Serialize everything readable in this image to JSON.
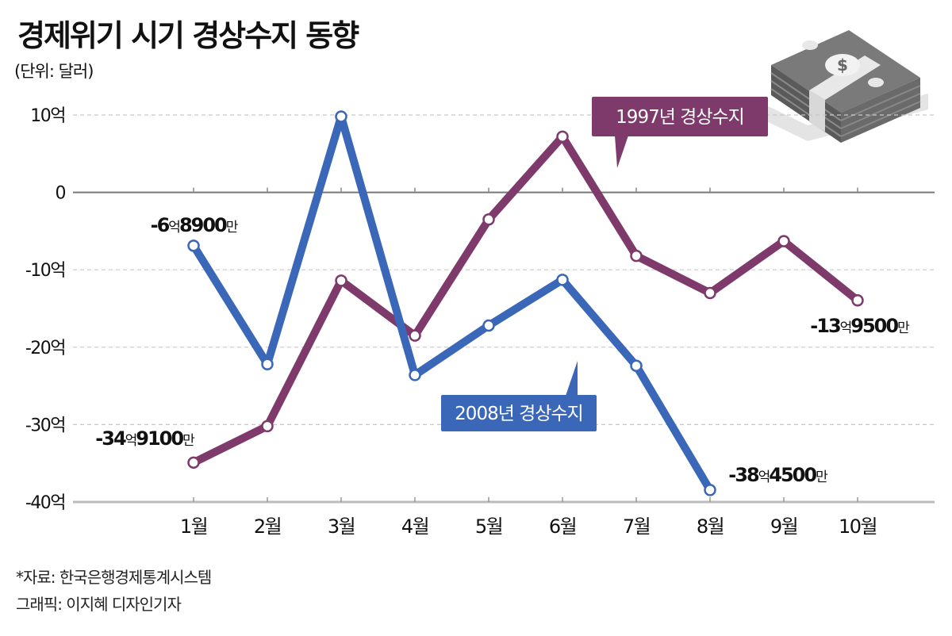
{
  "header": {
    "title": "경제위기 시기 경상수지 동향",
    "unit": "(단위: 달러)"
  },
  "footer": {
    "source": "*자료: 한국은행경제통계시스템",
    "credit": "그래픽: 이지혜 디자인기자"
  },
  "illustration": {
    "icon": "money-stack-icon",
    "symbol": "$"
  },
  "colors": {
    "series_2008": "#3a67b8",
    "series_1997": "#7e3a6b",
    "grid": "#c8c8c8",
    "axis": "#888888"
  },
  "chart_data": {
    "type": "line",
    "title": "경제위기 시기 경상수지 동향",
    "xlabel": "",
    "ylabel": "(단위: 달러)",
    "categories": [
      "1월",
      "2월",
      "3월",
      "4월",
      "5월",
      "6월",
      "7월",
      "8월",
      "9월",
      "10월"
    ],
    "ylim": [
      -40,
      10
    ],
    "yticks": [
      10,
      0,
      -10,
      -20,
      -30,
      -40
    ],
    "ytick_labels": [
      "10억",
      "0",
      "-10억",
      "-20억",
      "-30억",
      "-40억"
    ],
    "grid": true,
    "series": [
      {
        "name": "2008년 경상수지",
        "values": [
          -6.89,
          -22.2,
          9.8,
          -23.6,
          -17.2,
          -11.3,
          -22.4,
          -38.45,
          null,
          null
        ],
        "callout": "2008년 경상수지"
      },
      {
        "name": "1997년 경상수지",
        "values": [
          -34.91,
          -30.2,
          -11.4,
          -18.5,
          -3.5,
          7.2,
          -8.2,
          -13.0,
          -6.3,
          -13.95
        ],
        "callout": "1997년 경상수지"
      }
    ],
    "annotations": [
      {
        "series": "2008년 경상수지",
        "category": "1월",
        "parts": [
          "-6",
          "억",
          "8900",
          "만"
        ]
      },
      {
        "series": "1997년 경상수지",
        "category": "1월",
        "parts": [
          "-34",
          "억",
          "9100",
          "만"
        ]
      },
      {
        "series": "2008년 경상수지",
        "category": "8월",
        "parts": [
          "-38",
          "억",
          "4500",
          "만"
        ]
      },
      {
        "series": "1997년 경상수지",
        "category": "10월",
        "parts": [
          "-13",
          "억",
          "9500",
          "만"
        ]
      }
    ]
  }
}
